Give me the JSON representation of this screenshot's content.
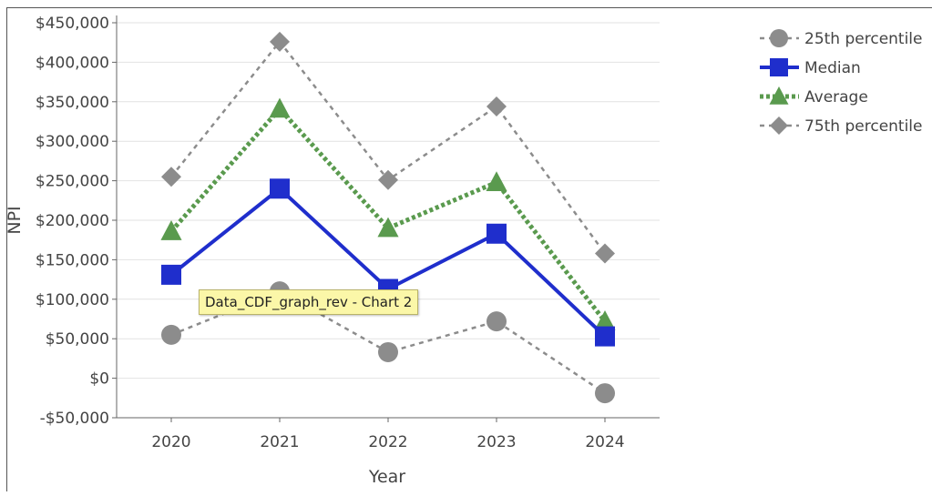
{
  "chart_data": {
    "type": "line",
    "title": "",
    "xlabel": "Year",
    "ylabel": "NPI",
    "categories": [
      "2020",
      "2021",
      "2022",
      "2023",
      "2024"
    ],
    "ylim": [
      -50000,
      450000
    ],
    "yticks": [
      -50000,
      0,
      50000,
      100000,
      150000,
      200000,
      250000,
      300000,
      350000,
      400000,
      450000
    ],
    "ytick_labels": [
      "-$50,000",
      "$0",
      "$50,000",
      "$100,000",
      "$150,000",
      "$200,000",
      "$250,000",
      "$300,000",
      "$350,000",
      "$400,000",
      "$450,000"
    ],
    "grid": true,
    "legend_position": "top-right",
    "series": [
      {
        "name": "25th percentile",
        "values": [
          55000,
          110000,
          33000,
          72000,
          -19000
        ],
        "color": "#8c8c8c",
        "marker": "circle",
        "line": "dashed"
      },
      {
        "name": "Median",
        "values": [
          131000,
          240000,
          113000,
          183000,
          53000
        ],
        "color": "#1f2ecc",
        "marker": "square",
        "line": "solid"
      },
      {
        "name": "Average",
        "values": [
          186000,
          341000,
          190000,
          248000,
          72000
        ],
        "color": "#5a9a4e",
        "marker": "triangle",
        "line": "dotted"
      },
      {
        "name": "75th percentile",
        "values": [
          255000,
          426000,
          251000,
          344000,
          158000
        ],
        "color": "#8c8c8c",
        "marker": "diamond",
        "line": "dashed"
      }
    ]
  },
  "tooltip": {
    "text": "Data_CDF_graph_rev - Chart 2"
  }
}
